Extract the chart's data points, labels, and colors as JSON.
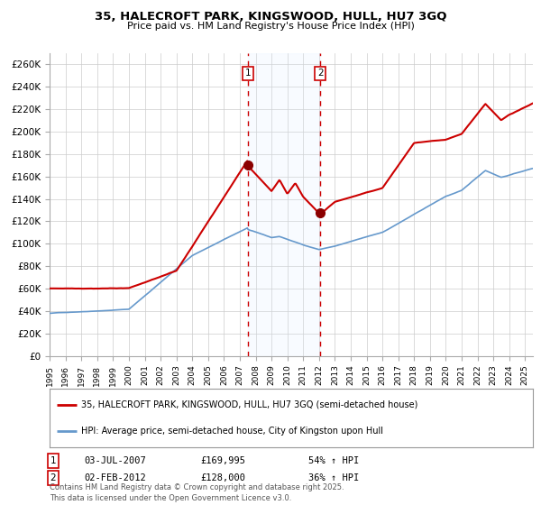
{
  "title1": "35, HALECROFT PARK, KINGSWOOD, HULL, HU7 3GQ",
  "title2": "Price paid vs. HM Land Registry's House Price Index (HPI)",
  "ylabel_ticks": [
    "£0",
    "£20K",
    "£40K",
    "£60K",
    "£80K",
    "£100K",
    "£120K",
    "£140K",
    "£160K",
    "£180K",
    "£200K",
    "£220K",
    "£240K",
    "£260K"
  ],
  "ytick_vals": [
    0,
    20000,
    40000,
    60000,
    80000,
    100000,
    120000,
    140000,
    160000,
    180000,
    200000,
    220000,
    240000,
    260000
  ],
  "ylim": [
    0,
    270000
  ],
  "legend1": "35, HALECROFT PARK, KINGSWOOD, HULL, HU7 3GQ (semi-detached house)",
  "legend2": "HPI: Average price, semi-detached house, City of Kingston upon Hull",
  "sale1_date": "03-JUL-2007",
  "sale1_price": 169995,
  "sale1_label": "1",
  "sale1_pct": "54% ↑ HPI",
  "sale2_date": "02-FEB-2012",
  "sale2_price": 128000,
  "sale2_label": "2",
  "sale2_pct": "36% ↑ HPI",
  "footer": "Contains HM Land Registry data © Crown copyright and database right 2025.\nThis data is licensed under the Open Government Licence v3.0.",
  "red_color": "#cc0000",
  "blue_color": "#6699cc",
  "bg_color": "#ffffff",
  "grid_color": "#cccccc",
  "shade_color": "#ddeeff",
  "sale1_x": 2007.5,
  "sale2_x": 2012.08
}
